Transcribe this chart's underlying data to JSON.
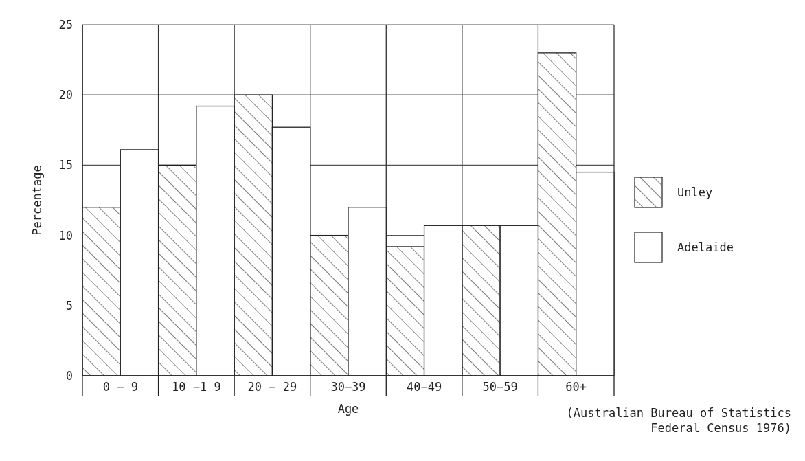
{
  "chart_data": {
    "type": "bar",
    "xlabel": "Age",
    "ylabel": "Percentage",
    "categories": [
      "0 − 9",
      "10 −1 9",
      "20 − 29",
      "30−39",
      "40−49",
      "50−59",
      "60+"
    ],
    "series": [
      {
        "name": "Unley",
        "color": "#222222",
        "values": [
          12,
          15,
          20,
          10,
          9.2,
          10.7,
          23
        ]
      },
      {
        "name": "Adelaide",
        "color": "#ffffff",
        "values": [
          16.1,
          19.2,
          17.7,
          12,
          10.7,
          10.7,
          14.5
        ]
      }
    ],
    "ylim": [
      0,
      25
    ],
    "yticks": [
      0,
      5,
      10,
      15,
      20,
      25
    ],
    "grid": true,
    "legend": "right",
    "annotations": [
      "(Australian Bureau of Statistics",
      "Federal Census 1976)"
    ]
  }
}
